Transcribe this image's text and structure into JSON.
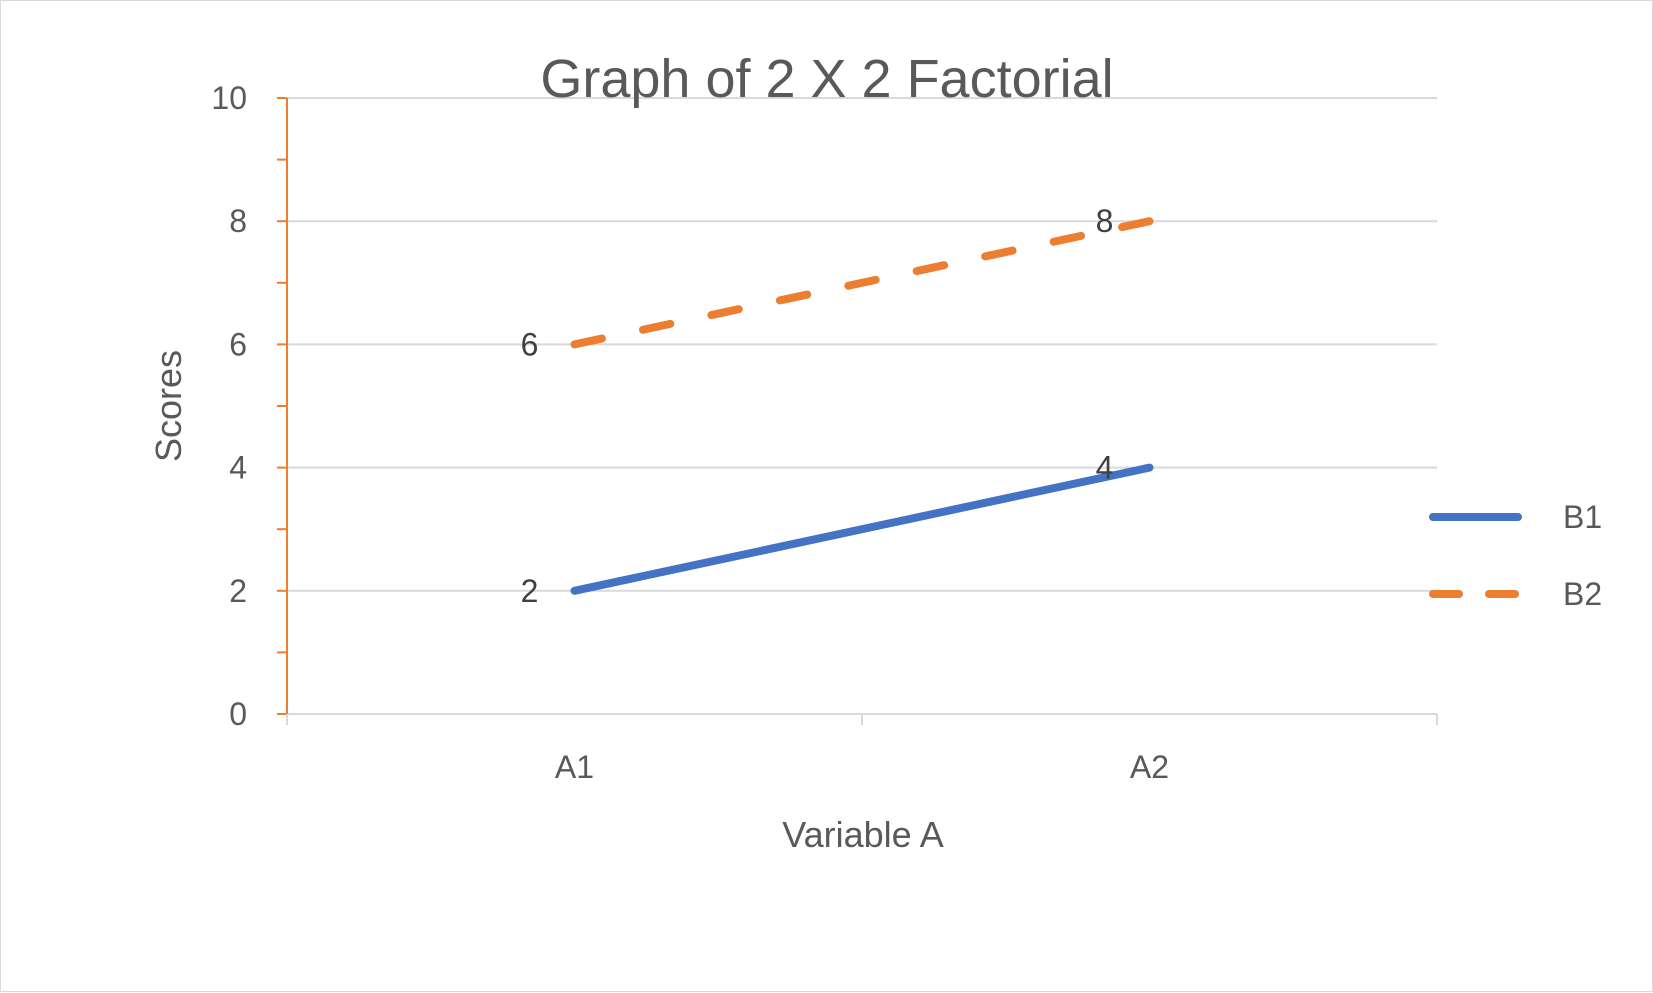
{
  "chart_data": {
    "type": "line",
    "title": "Graph of 2 X 2 Factorial",
    "xlabel": "Variable A",
    "ylabel": "Scores",
    "categories": [
      "A1",
      "A2"
    ],
    "ylim": [
      0,
      10
    ],
    "yticks": [
      0,
      2,
      4,
      6,
      8,
      10
    ],
    "grid": true,
    "legend_position": "right",
    "series": [
      {
        "name": "B1",
        "values": [
          2,
          4
        ],
        "color": "#4472C4",
        "dash": "solid",
        "data_labels": [
          "2",
          "4"
        ]
      },
      {
        "name": "B2",
        "values": [
          6,
          8
        ],
        "color": "#ED7D31",
        "dash": "dashed",
        "data_labels": [
          "6",
          "8"
        ]
      }
    ],
    "y_axis_color": "#ED7D31",
    "gridline_color": "#d9d9d9"
  }
}
